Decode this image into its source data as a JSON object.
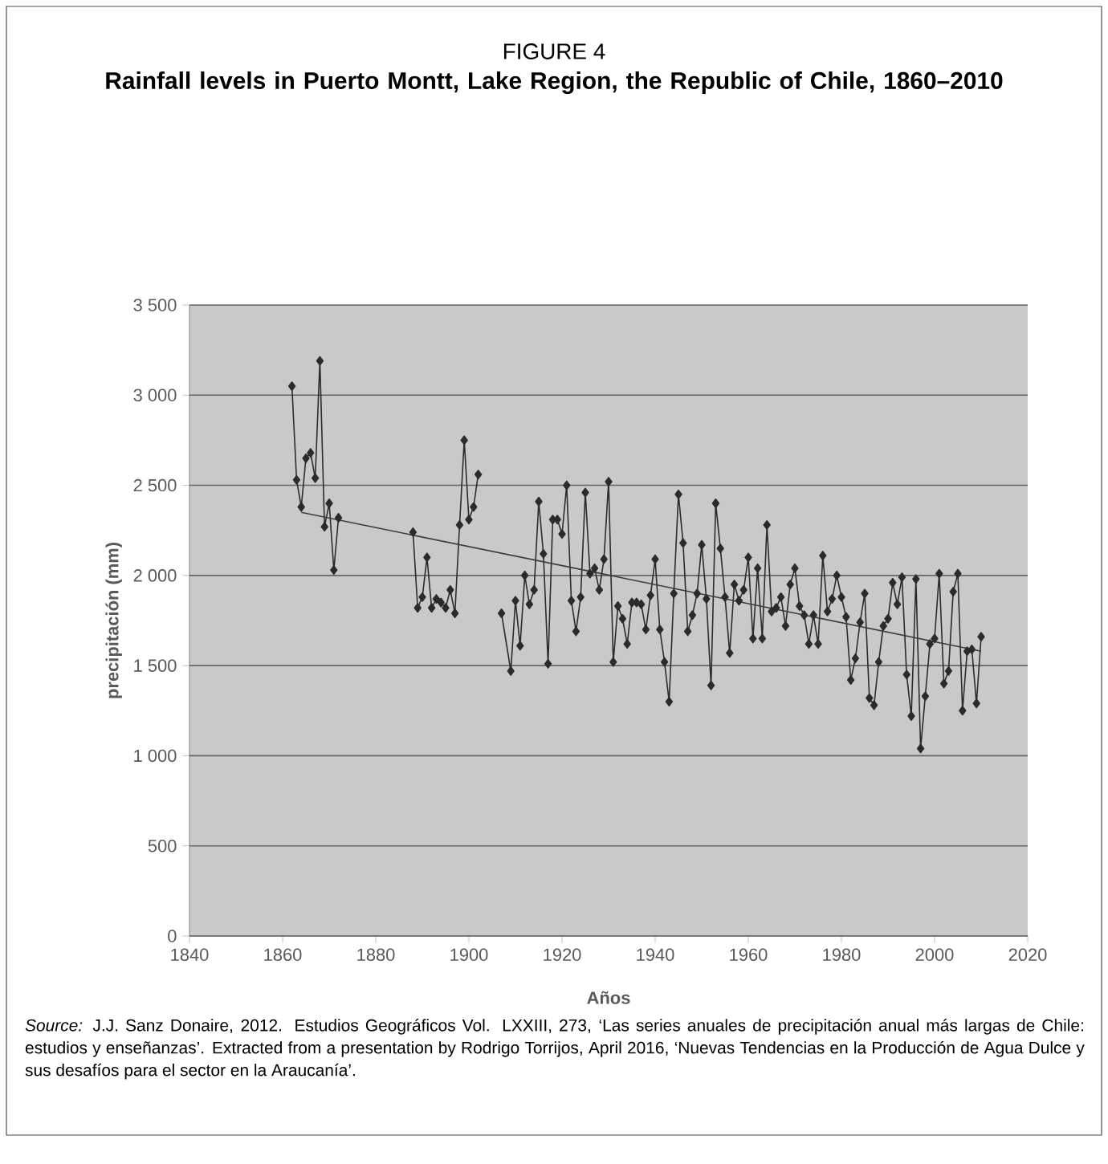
{
  "chart_data": {
    "type": "line",
    "title": "FIGURE 4",
    "subtitle": "Rainfall levels in Puerto Montt, Lake Region, the Republic of Chile, 1860–2010",
    "xlabel": "Años",
    "ylabel": "precipitación (mm)",
    "annotations": [
      "*Source:* J.J. Sanz Donaire, 2012. Estudios Geográficos Vol. LXXIII, 273, ‘Las series anuales de precipitación anual más largas de Chile: estudios y enseñanzas’. Extracted from a presentation by Rodrigo Torrijos, April 2016, ‘Nuevas Tendencias en la Producción de Agua Dulce y sus desafíos para el sector en la Araucanía’."
    ],
    "xlim": [
      1840,
      2020
    ],
    "xticks": [
      1840,
      1860,
      1880,
      1900,
      1920,
      1940,
      1960,
      1980,
      2000,
      2020
    ],
    "ylim": [
      0,
      3500
    ],
    "yticks": [
      {
        "value": 0,
        "label": "0"
      },
      {
        "value": 500,
        "label": "500"
      },
      {
        "value": 1000,
        "label": "1 000"
      },
      {
        "value": 1500,
        "label": "1 500"
      },
      {
        "value": 2000,
        "label": "2 000"
      },
      {
        "value": 2500,
        "label": "2 500"
      },
      {
        "value": 3000,
        "label": "3 000"
      },
      {
        "value": 3500,
        "label": "3 500"
      }
    ],
    "grid": "y",
    "series": [
      {
        "color": "#2b2b2b",
        "marker": "diamond",
        "line_style": "solid",
        "x": [
          1862,
          1863,
          1864,
          1865,
          1866,
          1867,
          1868,
          1869,
          1870,
          1871,
          1872,
          1880,
          1888,
          1889,
          1890,
          1891,
          1892,
          1893,
          1894,
          1895,
          1896,
          1897,
          1898,
          1899,
          1900,
          1901,
          1902,
          1905,
          1907,
          1909,
          1910,
          1911,
          1912,
          1913,
          1914,
          1915,
          1916,
          1917,
          1918,
          1919,
          1920,
          1921,
          1922,
          1923,
          1924,
          1925,
          1926,
          1927,
          1928,
          1929,
          1930,
          1931,
          1932,
          1933,
          1934,
          1935,
          1936,
          1937,
          1938,
          1939,
          1940,
          1941,
          1942,
          1943,
          1944,
          1945,
          1946,
          1947,
          1948,
          1949,
          1950,
          1951,
          1952,
          1953,
          1954,
          1955,
          1956,
          1957,
          1958,
          1959,
          1960,
          1961,
          1962,
          1963,
          1964,
          1965,
          1966,
          1967,
          1968,
          1969,
          1970,
          1971,
          1972,
          1973,
          1974,
          1975,
          1976,
          1977,
          1978,
          1979,
          1980,
          1981,
          1982,
          1983,
          1984,
          1985,
          1986,
          1987,
          1988,
          1989,
          1990,
          1991,
          1992,
          1993,
          1994,
          1995,
          1996,
          1997,
          1998,
          1999,
          2000,
          2001,
          2002,
          2003,
          2004,
          2005,
          2006,
          2007,
          2008,
          2009,
          2010
        ],
        "values": [
          3050,
          2530,
          2380,
          2650,
          2680,
          2540,
          3190,
          2270,
          2400,
          2030,
          2320,
          null,
          2240,
          1820,
          1880,
          2100,
          1820,
          1870,
          1850,
          1820,
          1920,
          1790,
          2280,
          2750,
          2310,
          2380,
          2560,
          null,
          1790,
          1470,
          1860,
          1610,
          2000,
          1840,
          1920,
          2410,
          2120,
          1510,
          2310,
          2310,
          2230,
          2500,
          1860,
          1690,
          1880,
          2460,
          2010,
          2040,
          1920,
          2090,
          2520,
          1520,
          1830,
          1760,
          1620,
          1850,
          1850,
          1840,
          1700,
          1890,
          2090,
          1700,
          1520,
          1300,
          1900,
          2450,
          2180,
          1690,
          1780,
          1900,
          2170,
          1870,
          1390,
          2400,
          2150,
          1880,
          1570,
          1950,
          1860,
          1920,
          2100,
          1650,
          2040,
          1650,
          2280,
          1800,
          1820,
          1880,
          1720,
          1950,
          2040,
          1830,
          1780,
          1620,
          1780,
          1620,
          2110,
          1800,
          1870,
          2000,
          1880,
          1770,
          1420,
          1540,
          1740,
          1900,
          1320,
          1280,
          1520,
          1720,
          1760,
          1960,
          1840,
          1990,
          1450,
          1220,
          1980,
          1040,
          1330,
          1620,
          1650,
          2010,
          1400,
          1470,
          1910,
          2010,
          1250,
          1580,
          1590,
          1290,
          1660
        ]
      },
      {
        "color": "#3c3c3c",
        "marker": "none",
        "line_style": "solid",
        "x": [
          1864,
          2010
        ],
        "values": [
          2350,
          1580
        ]
      }
    ]
  }
}
